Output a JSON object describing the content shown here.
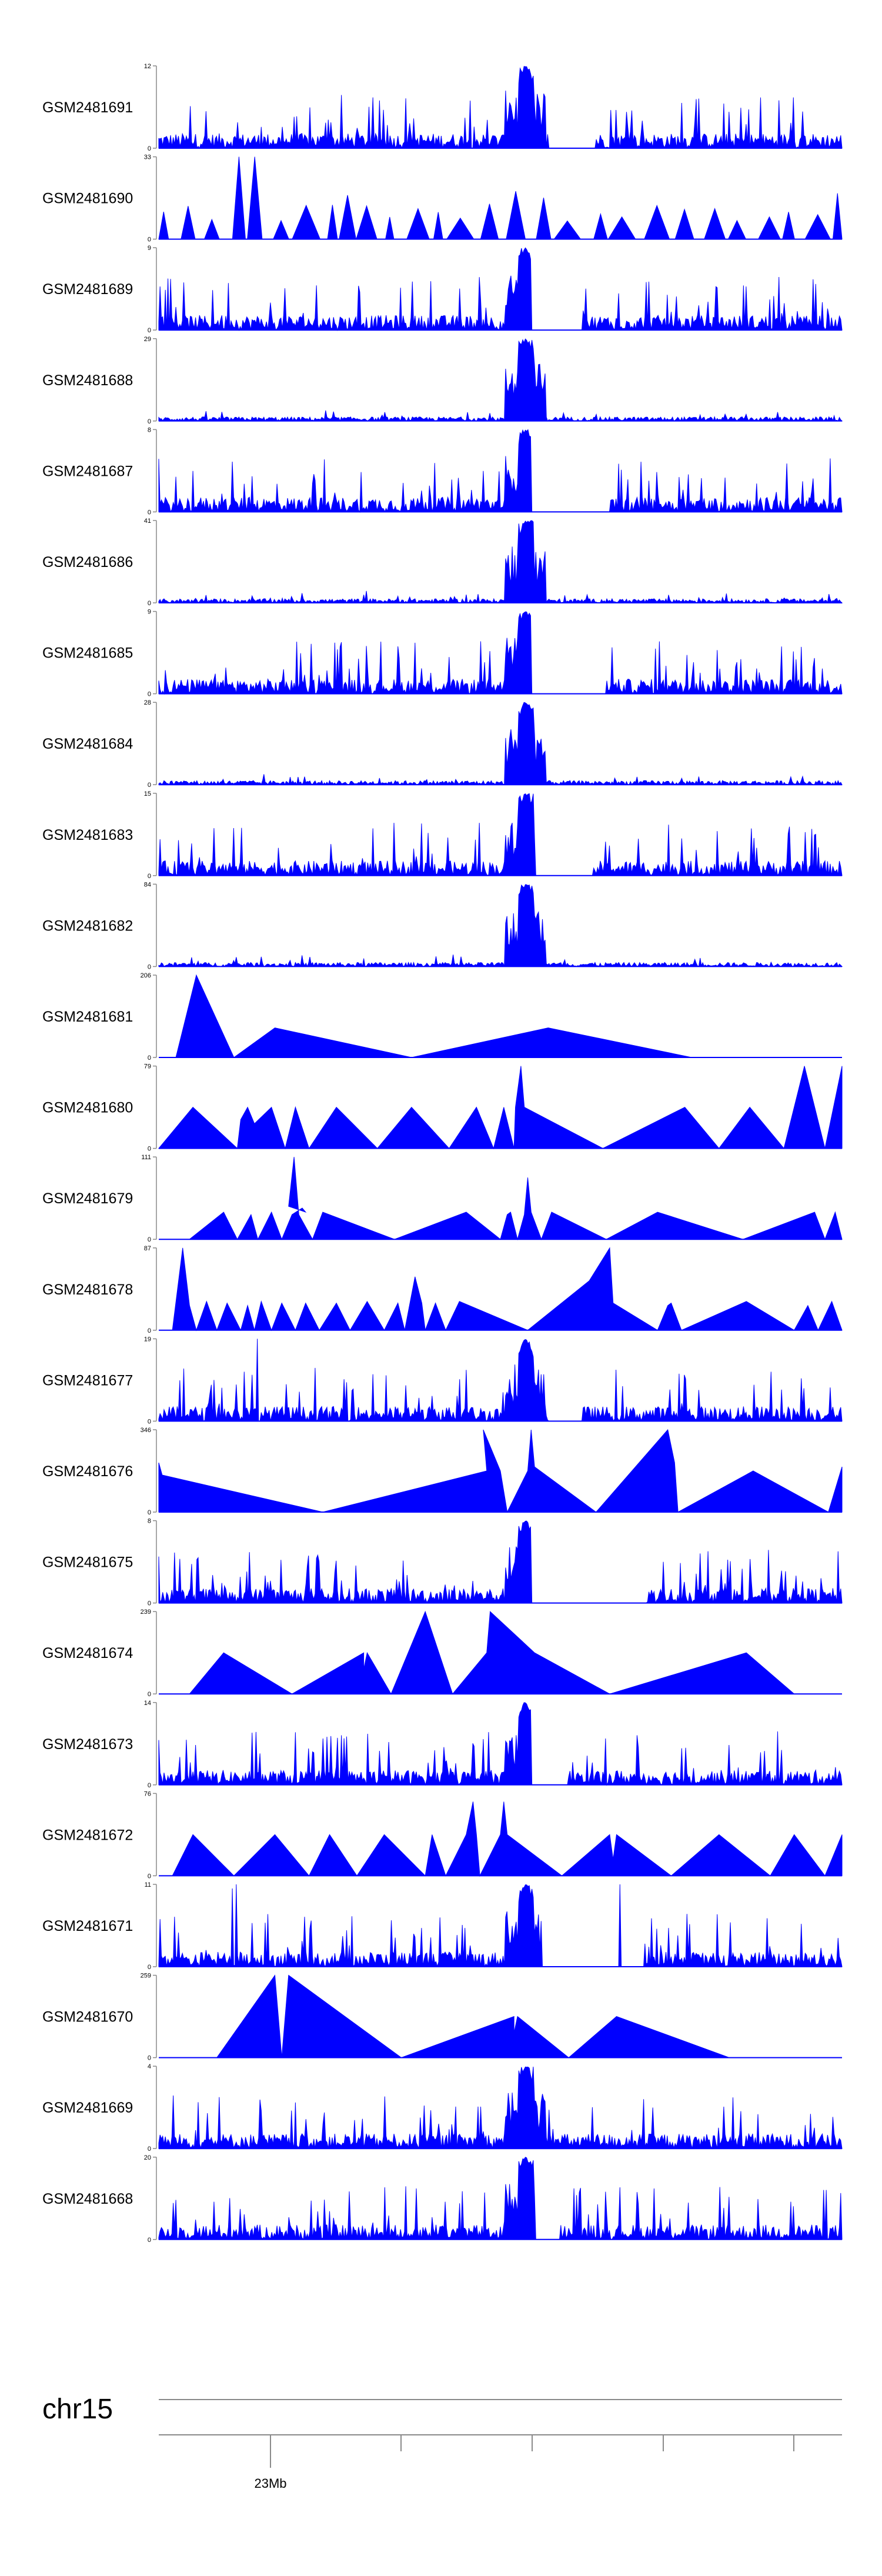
{
  "chart_data": {
    "type": "area",
    "title": "",
    "xlabel": "",
    "ylabel": "",
    "chromosome": "chr15",
    "axis_label": "23Mb",
    "color": "#0000ff",
    "grid": false,
    "legend": "none",
    "tracks": [
      {
        "name": "GSM2481691",
        "ymax": "12",
        "ymin": "0",
        "peak": 12,
        "kind": "dense",
        "holes": [
          [
            0.57,
            0.64
          ]
        ]
      },
      {
        "name": "GSM2481690",
        "ymax": "33",
        "ymin": "0",
        "peak": 33,
        "kind": "sparse",
        "spikes": [
          [
            0.133,
            1.0
          ]
        ]
      },
      {
        "name": "GSM2481689",
        "ymax": "9",
        "ymin": "0",
        "peak": 9,
        "kind": "dense",
        "holes": [
          [
            0.545,
            0.62
          ]
        ]
      },
      {
        "name": "GSM2481688",
        "ymax": "29",
        "ymin": "0",
        "peak": 29,
        "kind": "dense-low",
        "holes": []
      },
      {
        "name": "GSM2481687",
        "ymax": "8",
        "ymin": "0",
        "peak": 8,
        "kind": "dense",
        "holes": [
          [
            0.545,
            0.66
          ]
        ]
      },
      {
        "name": "GSM2481686",
        "ymax": "41",
        "ymin": "0",
        "peak": 41,
        "kind": "dense-low",
        "holes": []
      },
      {
        "name": "GSM2481685",
        "ymax": "9",
        "ymin": "0",
        "peak": 9,
        "kind": "dense",
        "holes": [
          [
            0.545,
            0.655
          ]
        ]
      },
      {
        "name": "GSM2481684",
        "ymax": "28",
        "ymin": "0",
        "peak": 28,
        "kind": "dense-low",
        "holes": []
      },
      {
        "name": "GSM2481683",
        "ymax": "15",
        "ymin": "0",
        "peak": 15,
        "kind": "dense",
        "holes": [
          [
            0.55,
            0.635
          ]
        ]
      },
      {
        "name": "GSM2481682",
        "ymax": "84",
        "ymin": "0",
        "peak": 84,
        "kind": "dense-low",
        "holes": []
      },
      {
        "name": "GSM2481681",
        "ymax": "206",
        "ymin": "0",
        "peak": 206,
        "kind": "points",
        "points": [
          [
            0.025,
            0
          ],
          [
            0.055,
            1.0
          ],
          [
            0.11,
            0
          ],
          [
            0.17,
            0.36
          ],
          [
            0.37,
            0
          ],
          [
            0.57,
            0.36
          ],
          [
            0.78,
            0
          ]
        ]
      },
      {
        "name": "GSM2481680",
        "ymax": "79",
        "ymin": "0",
        "peak": 79,
        "kind": "points",
        "points": [
          [
            0,
            0
          ],
          [
            0.05,
            0.5
          ],
          [
            0.115,
            0
          ],
          [
            0.12,
            0.35
          ],
          [
            0.13,
            0.5
          ],
          [
            0.14,
            0.3
          ],
          [
            0.165,
            0.5
          ],
          [
            0.185,
            0
          ],
          [
            0.2,
            0.5
          ],
          [
            0.22,
            0
          ],
          [
            0.26,
            0.5
          ],
          [
            0.32,
            0
          ],
          [
            0.37,
            0.5
          ],
          [
            0.425,
            0
          ],
          [
            0.465,
            0.5
          ],
          [
            0.49,
            0
          ],
          [
            0.505,
            0.5
          ],
          [
            0.52,
            0
          ],
          [
            0.522,
            0.5
          ],
          [
            0.53,
            1.0
          ],
          [
            0.535,
            0.5
          ],
          [
            0.65,
            0
          ],
          [
            0.77,
            0.5
          ],
          [
            0.82,
            0
          ],
          [
            0.865,
            0.5
          ],
          [
            0.915,
            0
          ],
          [
            0.945,
            1.0
          ],
          [
            0.975,
            0
          ],
          [
            1.0,
            1.0
          ]
        ]
      },
      {
        "name": "GSM2481679",
        "ymax": "111",
        "ymin": "0",
        "peak": 111,
        "kind": "points",
        "points": [
          [
            0.045,
            0
          ],
          [
            0.095,
            0.33
          ],
          [
            0.115,
            0
          ],
          [
            0.135,
            0.3
          ],
          [
            0.145,
            0
          ],
          [
            0.165,
            0.33
          ],
          [
            0.18,
            0
          ],
          [
            0.195,
            0.3
          ],
          [
            0.21,
            0.38
          ],
          [
            0.215,
            0.33
          ],
          [
            0.19,
            0.4
          ],
          [
            0.198,
            1.0
          ],
          [
            0.205,
            0.3
          ],
          [
            0.225,
            0
          ],
          [
            0.24,
            0.33
          ],
          [
            0.345,
            0
          ],
          [
            0.45,
            0.33
          ],
          [
            0.5,
            0
          ],
          [
            0.51,
            0.3
          ],
          [
            0.515,
            0.33
          ],
          [
            0.525,
            0
          ],
          [
            0.535,
            0.3
          ],
          [
            0.54,
            0.75
          ],
          [
            0.545,
            0.33
          ],
          [
            0.56,
            0
          ],
          [
            0.575,
            0.33
          ],
          [
            0.655,
            0
          ],
          [
            0.73,
            0.33
          ],
          [
            0.855,
            0
          ],
          [
            0.96,
            0.33
          ],
          [
            0.975,
            0
          ],
          [
            0.99,
            0.33
          ],
          [
            1.0,
            0
          ]
        ]
      },
      {
        "name": "GSM2481678",
        "ymax": "87",
        "ymin": "0",
        "peak": 87,
        "kind": "points",
        "points": [
          [
            0.02,
            0
          ],
          [
            0.035,
            1.0
          ],
          [
            0.045,
            0.3
          ],
          [
            0.055,
            0
          ],
          [
            0.07,
            0.35
          ],
          [
            0.085,
            0
          ],
          [
            0.1,
            0.33
          ],
          [
            0.12,
            0
          ],
          [
            0.13,
            0.3
          ],
          [
            0.14,
            0
          ],
          [
            0.15,
            0.35
          ],
          [
            0.165,
            0
          ],
          [
            0.18,
            0.33
          ],
          [
            0.2,
            0
          ],
          [
            0.215,
            0.33
          ],
          [
            0.235,
            0
          ],
          [
            0.26,
            0.33
          ],
          [
            0.28,
            0
          ],
          [
            0.305,
            0.35
          ],
          [
            0.33,
            0
          ],
          [
            0.35,
            0.33
          ],
          [
            0.36,
            0
          ],
          [
            0.375,
            0.65
          ],
          [
            0.385,
            0.33
          ],
          [
            0.39,
            0
          ],
          [
            0.405,
            0.33
          ],
          [
            0.42,
            0
          ],
          [
            0.44,
            0.35
          ],
          [
            0.54,
            0
          ],
          [
            0.63,
            0.6
          ],
          [
            0.66,
            1.0
          ],
          [
            0.665,
            0.33
          ],
          [
            0.73,
            0
          ],
          [
            0.745,
            0.3
          ],
          [
            0.75,
            0.33
          ],
          [
            0.765,
            0
          ],
          [
            0.86,
            0.35
          ],
          [
            0.93,
            0
          ],
          [
            0.95,
            0.3
          ],
          [
            0.965,
            0
          ],
          [
            0.985,
            0.35
          ],
          [
            1.0,
            0
          ]
        ]
      },
      {
        "name": "GSM2481677",
        "ymax": "19",
        "ymin": "0",
        "peak": 19,
        "kind": "dense",
        "holes": [
          [
            0.57,
            0.62
          ]
        ],
        "spikes": [
          [
            0.145,
            1.0
          ],
          [
            0.125,
            0.6
          ],
          [
            0.08,
            0.5
          ]
        ]
      },
      {
        "name": "GSM2481676",
        "ymax": "346",
        "ymin": "0",
        "peak": 346,
        "kind": "points",
        "points": [
          [
            0,
            0.6
          ],
          [
            0.005,
            0.45
          ],
          [
            0.24,
            0
          ],
          [
            0.48,
            0.5
          ],
          [
            0.475,
            1.0
          ],
          [
            0.5,
            0.5
          ],
          [
            0.51,
            0
          ],
          [
            0.54,
            0.5
          ],
          [
            0.545,
            1.0
          ],
          [
            0.55,
            0.55
          ],
          [
            0.64,
            0
          ],
          [
            0.745,
            1.0
          ],
          [
            0.755,
            0.6
          ],
          [
            0.76,
            0
          ],
          [
            0.87,
            0.5
          ],
          [
            0.98,
            0
          ],
          [
            1.0,
            0.55
          ]
        ]
      },
      {
        "name": "GSM2481675",
        "ymax": "8",
        "ymin": "0",
        "peak": 8,
        "kind": "dense",
        "holes": [
          [
            0.545,
            0.715
          ]
        ]
      },
      {
        "name": "GSM2481674",
        "ymax": "239",
        "ymin": "0",
        "peak": 239,
        "kind": "points",
        "points": [
          [
            0.045,
            0
          ],
          [
            0.095,
            0.5
          ],
          [
            0.195,
            0
          ],
          [
            0.3,
            0.5
          ],
          [
            0.3,
            0.3
          ],
          [
            0.305,
            0.5
          ],
          [
            0.34,
            0
          ],
          [
            0.39,
            1.0
          ],
          [
            0.43,
            0
          ],
          [
            0.48,
            0.5
          ],
          [
            0.485,
            1.0
          ],
          [
            0.55,
            0.5
          ],
          [
            0.66,
            0
          ],
          [
            0.86,
            0.5
          ],
          [
            0.93,
            0
          ]
        ]
      },
      {
        "name": "GSM2481673",
        "ymax": "14",
        "ymin": "0",
        "peak": 14,
        "kind": "dense",
        "holes": [
          [
            0.545,
            0.6
          ]
        ]
      },
      {
        "name": "GSM2481672",
        "ymax": "76",
        "ymin": "0",
        "peak": 76,
        "kind": "points",
        "points": [
          [
            0.02,
            0
          ],
          [
            0.05,
            0.5
          ],
          [
            0.11,
            0
          ],
          [
            0.17,
            0.5
          ],
          [
            0.22,
            0
          ],
          [
            0.25,
            0.5
          ],
          [
            0.29,
            0
          ],
          [
            0.33,
            0.5
          ],
          [
            0.39,
            0
          ],
          [
            0.4,
            0.5
          ],
          [
            0.42,
            0
          ],
          [
            0.45,
            0.5
          ],
          [
            0.46,
            0.9
          ],
          [
            0.465,
            0.5
          ],
          [
            0.47,
            0
          ],
          [
            0.5,
            0.5
          ],
          [
            0.505,
            0.9
          ],
          [
            0.51,
            0.5
          ],
          [
            0.59,
            0
          ],
          [
            0.66,
            0.5
          ],
          [
            0.665,
            0.2
          ],
          [
            0.67,
            0.5
          ],
          [
            0.75,
            0
          ],
          [
            0.82,
            0.5
          ],
          [
            0.895,
            0
          ],
          [
            0.93,
            0.5
          ],
          [
            0.975,
            0
          ],
          [
            1.0,
            0.5
          ]
        ]
      },
      {
        "name": "GSM2481671",
        "ymax": "11",
        "ymin": "0",
        "peak": 11,
        "kind": "dense",
        "holes": [
          [
            0.56,
            0.71
          ]
        ],
        "spikes": [
          [
            0.113,
            1.0
          ],
          [
            0.107,
            0.95
          ],
          [
            0.675,
            1.0
          ]
        ]
      },
      {
        "name": "GSM2481670",
        "ymax": "259",
        "ymin": "0",
        "peak": 259,
        "kind": "points",
        "points": [
          [
            0.085,
            0
          ],
          [
            0.17,
            1.0
          ],
          [
            0.18,
            0
          ],
          [
            0.19,
            1.0
          ],
          [
            0.355,
            0
          ],
          [
            0.52,
            0.5
          ],
          [
            0.52,
            0.3
          ],
          [
            0.525,
            0.5
          ],
          [
            0.6,
            0
          ],
          [
            0.67,
            0.5
          ],
          [
            0.835,
            0
          ]
        ]
      },
      {
        "name": "GSM2481669",
        "ymax": "4",
        "ymin": "0",
        "peak": 4,
        "kind": "dense",
        "holes": []
      },
      {
        "name": "GSM2481668",
        "ymax": "20",
        "ymin": "0",
        "peak": 20,
        "kind": "dense",
        "holes": [
          [
            0.55,
            0.585
          ]
        ]
      }
    ]
  }
}
